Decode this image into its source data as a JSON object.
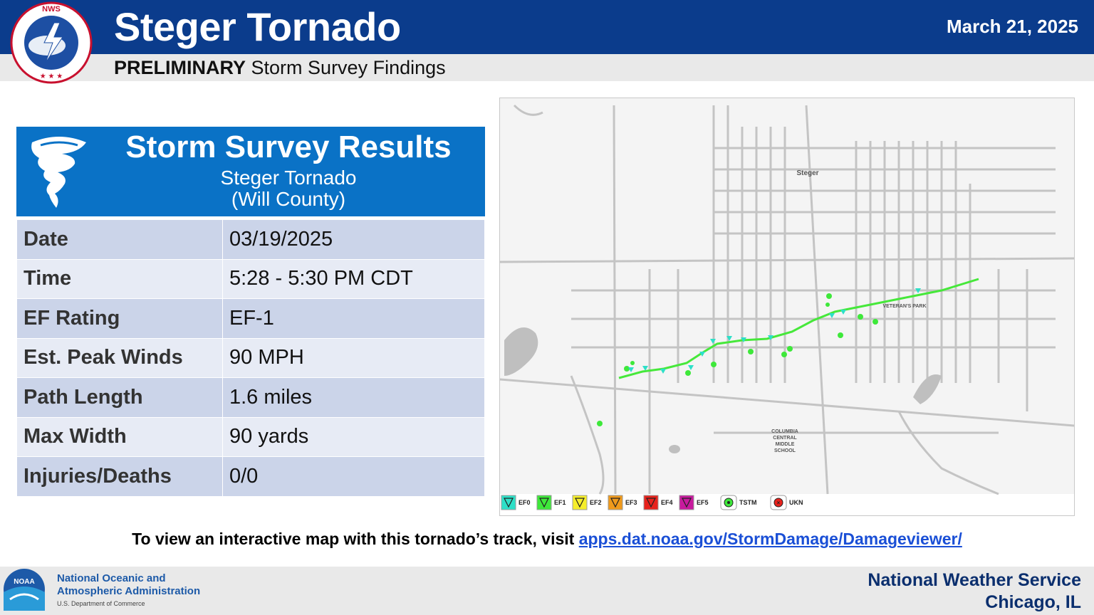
{
  "header": {
    "title": "Steger Tornado",
    "date": "March 21, 2025",
    "subtitle_bold": "PRELIMINARY",
    "subtitle_rest": "Storm Survey Findings",
    "logo_text": "NATIONAL WEATHER SERVICE"
  },
  "card": {
    "title": "Storm Survey Results",
    "subtitle1": "Steger Tornado",
    "subtitle2": "(Will County)",
    "icon": "tornado-icon"
  },
  "results": [
    {
      "label": "Date",
      "value": "03/19/2025"
    },
    {
      "label": "Time",
      "value": "5:28 - 5:30 PM CDT"
    },
    {
      "label": "EF Rating",
      "value": "EF-1"
    },
    {
      "label": "Est. Peak Winds",
      "value": "90 MPH"
    },
    {
      "label": "Path Length",
      "value": "1.6 miles"
    },
    {
      "label": "Max Width",
      "value": "90 yards"
    },
    {
      "label": "Injuries/Deaths",
      "value": "0/0"
    }
  ],
  "map": {
    "labels": {
      "town": "Steger",
      "park": "VETERAN'S PARK",
      "school_1": "COLUMBIA",
      "school_2": "CENTRAL",
      "school_3": "MIDDLE",
      "school_4": "SCHOOL"
    },
    "track_color": "#46e83a",
    "legend": [
      {
        "label": "EF0",
        "color": "#2de0c8"
      },
      {
        "label": "EF1",
        "color": "#3ee83a"
      },
      {
        "label": "EF2",
        "color": "#f6ee2a"
      },
      {
        "label": "EF3",
        "color": "#f09a1c"
      },
      {
        "label": "EF4",
        "color": "#e8221c"
      },
      {
        "label": "EF5",
        "color": "#c81a9e"
      },
      {
        "label": "TSTM",
        "color": "#3ee83a"
      },
      {
        "label": "UKN",
        "color": "#e8221c"
      }
    ]
  },
  "footer": {
    "text": "To view an interactive map with this tornado’s track, visit",
    "link": "apps.dat.noaa.gov/StormDamage/Damageviewer/",
    "noaa_line1": "National Oceanic and",
    "noaa_line2": "Atmospheric Administration",
    "noaa_dept": "U.S. Department of Commerce",
    "noaa_logo_text": "NOAA",
    "office_line1": "National Weather Service",
    "office_line2": "Chicago, IL"
  }
}
